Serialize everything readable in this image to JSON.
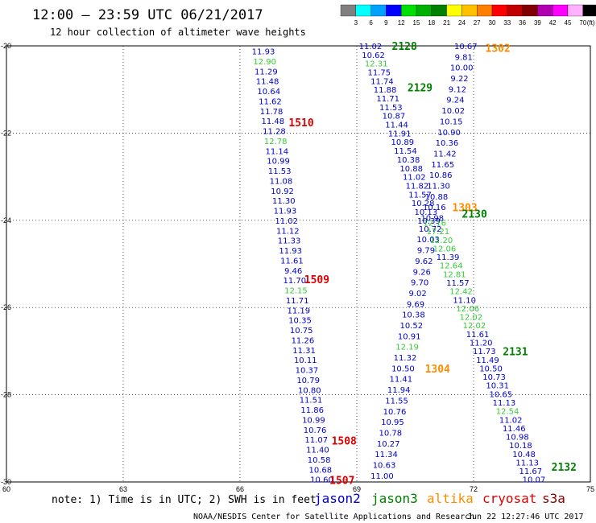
{
  "header": {
    "title": "12:00 — 23:59 UTC 06/21/2017",
    "subtitle": "12 hour collection of altimeter wave heights"
  },
  "colorbar": {
    "ticks": [
      "3",
      "6",
      "9",
      "12",
      "15",
      "18",
      "21",
      "24",
      "27",
      "30",
      "33",
      "36",
      "39",
      "42",
      "45",
      "70"
    ],
    "unit": "(ft)",
    "colors": [
      "#808080",
      "#00ffff",
      "#00a0ff",
      "#0000ff",
      "#00e000",
      "#00b000",
      "#008000",
      "#ffff00",
      "#ffc000",
      "#ff8000",
      "#ff0000",
      "#c00000",
      "#800000",
      "#b000b0",
      "#ff00ff",
      "#ffb0ff",
      "#000000"
    ]
  },
  "note": "note: 1) Time is in UTC; 2) SWH is in feet",
  "missions": [
    {
      "name": "jason2",
      "color": "#0000cc"
    },
    {
      "name": "jason3",
      "color": "#008000"
    },
    {
      "name": "altika",
      "color": "#ff8c00"
    },
    {
      "name": "cryosat",
      "color": "#dd0000"
    },
    {
      "name": "s3a",
      "color": "#8b0000"
    }
  ],
  "footer": {
    "credit": "NOAA/NESDIS Center for Satellite Applications and Research",
    "timestamp": "Jun 22 12:27:46 UTC 2017"
  },
  "chart_data": {
    "type": "scatter",
    "xlim": [
      60,
      75
    ],
    "ylim": [
      -30,
      -20
    ],
    "xticks": [
      60,
      63,
      66,
      69,
      72,
      75
    ],
    "yticks": [
      -20,
      -22,
      -24,
      -26,
      -28,
      -30
    ],
    "xtick_labels": [
      "60",
      "63",
      "66",
      "69",
      "72",
      "75"
    ],
    "ytick_labels": [
      "-20",
      "-22",
      "-24",
      "-26",
      "-28",
      "-30"
    ],
    "grid": true,
    "pass_labels": [
      {
        "text": "2128",
        "x": 69.9,
        "y": -20.0,
        "color": "#008000"
      },
      {
        "text": "1302",
        "x": 72.3,
        "y": -20.05,
        "color": "#ff8c00"
      },
      {
        "text": "2129",
        "x": 70.3,
        "y": -20.95,
        "color": "#008000"
      },
      {
        "text": "1510",
        "x": 67.25,
        "y": -21.75,
        "color": "#dd0000"
      },
      {
        "text": "1303",
        "x": 71.45,
        "y": -23.7,
        "color": "#ff8c00"
      },
      {
        "text": "2130",
        "x": 71.7,
        "y": -23.85,
        "color": "#008000"
      },
      {
        "text": "1509",
        "x": 67.65,
        "y": -25.35,
        "color": "#dd0000"
      },
      {
        "text": "1304",
        "x": 70.75,
        "y": -27.4,
        "color": "#ff8c00"
      },
      {
        "text": "2131",
        "x": 72.75,
        "y": -27.0,
        "color": "#008000"
      },
      {
        "text": "1508",
        "x": 68.35,
        "y": -29.05,
        "color": "#dd0000"
      },
      {
        "text": "1507",
        "x": 68.3,
        "y": -29.95,
        "color": "#dd0000"
      },
      {
        "text": "2132",
        "x": 74.0,
        "y": -29.65,
        "color": "#008000"
      }
    ],
    "series": [
      {
        "name": "track-1510-1509-1508",
        "x0": 66.6,
        "y0": -20.12,
        "x1": 68.1,
        "y1": -29.94,
        "values": [
          "11.93",
          "12.90",
          "11.29",
          "11.48",
          "10.64",
          "11.62",
          "11.78",
          "11.48",
          "11.28",
          "12.78",
          "11.14",
          "10.99",
          "11.53",
          "11.08",
          "10.92",
          "11.30",
          "11.93",
          "11.02",
          "11.12",
          "11.33",
          "11.93",
          "11.61",
          "9.46",
          "11.70",
          "12.15",
          "11.71",
          "11.19",
          "10.35",
          "10.75",
          "11.26",
          "11.31",
          "10.11",
          "10.37",
          "10.79",
          "10.80",
          "11.51",
          "11.86",
          "10.99",
          "10.76",
          "11.07",
          "11.40",
          "10.58",
          "10.68",
          "10.60"
        ],
        "colors": [
          "#0000cc",
          "#33cc33",
          "#0000cc",
          "#0000cc",
          "#0000cc",
          "#0000cc",
          "#0000cc",
          "#0000cc",
          "#0000cc",
          "#33cc33",
          "#0000cc",
          "#0000cc",
          "#0000cc",
          "#0000cc",
          "#0000cc",
          "#0000cc",
          "#0000cc",
          "#0000cc",
          "#0000cc",
          "#0000cc",
          "#0000cc",
          "#0000cc",
          "#0000cc",
          "#0000cc",
          "#33cc33",
          "#0000cc",
          "#0000cc",
          "#0000cc",
          "#0000cc",
          "#0000cc",
          "#0000cc",
          "#0000cc",
          "#0000cc",
          "#0000cc",
          "#0000cc",
          "#0000cc",
          "#0000cc",
          "#0000cc",
          "#0000cc",
          "#0000cc",
          "#0000cc",
          "#0000cc",
          "#0000cc",
          "#0000cc"
        ]
      },
      {
        "name": "track-2128-2129",
        "x0": 69.35,
        "y0": -20.0,
        "x1": 70.85,
        "y1": -24.0,
        "values": [
          "11.02",
          "10.62",
          "12.31",
          "11.75",
          "11.74",
          "11.88",
          "11.71",
          "11.53",
          "10.87",
          "11.44",
          "11.91",
          "10.89",
          "11.54",
          "10.38",
          "10.88",
          "11.02",
          "11.82",
          "11.57",
          "10.28",
          "10.13",
          "10.39"
        ],
        "colors": [
          "#0000cc",
          "#0000cc",
          "#33cc33",
          "#0000cc",
          "#0000cc",
          "#0000cc",
          "#0000cc",
          "#0000cc",
          "#0000cc",
          "#0000cc",
          "#0000cc",
          "#0000cc",
          "#0000cc",
          "#0000cc",
          "#0000cc",
          "#0000cc",
          "#0000cc",
          "#0000cc",
          "#0000cc",
          "#0000cc",
          "#0000cc"
        ]
      },
      {
        "name": "track-1302-1303-1304",
        "x0": 71.8,
        "y0": -20.0,
        "x1": 69.65,
        "y1": -29.85,
        "values": [
          "10.67",
          "9.81",
          "10.00",
          "9.22",
          "9.12",
          "9.24",
          "10.02",
          "10.15",
          "10.90",
          "10.36",
          "11.42",
          "11.65",
          "10.86",
          "11.30",
          "10.88",
          "10.16",
          "10.98",
          "10.72",
          "10.03",
          "9.79",
          "9.62",
          "9.26",
          "9.70",
          "9.02",
          "9.69",
          "10.38",
          "10.52",
          "10.91",
          "12.19",
          "11.32",
          "10.50",
          "11.41",
          "11.94",
          "11.55",
          "10.76",
          "10.95",
          "10.78",
          "10.27",
          "11.34",
          "10.63",
          "11.00"
        ],
        "colors": [
          "#0000cc",
          "#0000cc",
          "#0000cc",
          "#0000cc",
          "#0000cc",
          "#0000cc",
          "#0000cc",
          "#0000cc",
          "#0000cc",
          "#0000cc",
          "#0000cc",
          "#0000cc",
          "#0000cc",
          "#0000cc",
          "#0000cc",
          "#0000cc",
          "#0000cc",
          "#0000cc",
          "#0000cc",
          "#0000cc",
          "#0000cc",
          "#0000cc",
          "#0000cc",
          "#0000cc",
          "#0000cc",
          "#0000cc",
          "#0000cc",
          "#0000cc",
          "#33cc33",
          "#0000cc",
          "#0000cc",
          "#0000cc",
          "#0000cc",
          "#0000cc",
          "#0000cc",
          "#0000cc",
          "#0000cc",
          "#0000cc",
          "#0000cc",
          "#0000cc",
          "#0000cc"
        ]
      },
      {
        "name": "track-2130-2131-2132",
        "x0": 71.0,
        "y0": -24.05,
        "x1": 73.55,
        "y1": -29.94,
        "values": [
          "12.16",
          "17.21",
          "12.20",
          "12.06",
          "11.39",
          "12.64",
          "12.81",
          "11.57",
          "12.42",
          "11.10",
          "12.06",
          "12.02",
          "12.02",
          "11.61",
          "11.20",
          "11.73",
          "11.49",
          "10.50",
          "10.73",
          "10.31",
          "10.65",
          "11.13",
          "12.54",
          "11.02",
          "11.46",
          "10.98",
          "10.18",
          "10.48",
          "11.13",
          "11.67",
          "10.07"
        ],
        "colors": [
          "#33cc33",
          "#33cc33",
          "#33cc33",
          "#33cc33",
          "#0000cc",
          "#33cc33",
          "#33cc33",
          "#0000cc",
          "#33cc33",
          "#0000cc",
          "#33cc33",
          "#33cc33",
          "#33cc33",
          "#0000cc",
          "#0000cc",
          "#0000cc",
          "#0000cc",
          "#0000cc",
          "#0000cc",
          "#0000cc",
          "#0000cc",
          "#0000cc",
          "#33cc33",
          "#0000cc",
          "#0000cc",
          "#0000cc",
          "#0000cc",
          "#0000cc",
          "#0000cc",
          "#0000cc",
          "#0000cc"
        ]
      }
    ]
  }
}
